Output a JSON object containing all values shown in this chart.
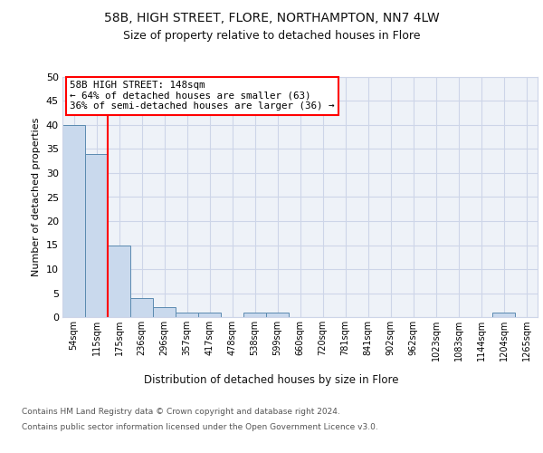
{
  "title1": "58B, HIGH STREET, FLORE, NORTHAMPTON, NN7 4LW",
  "title2": "Size of property relative to detached houses in Flore",
  "xlabel": "Distribution of detached houses by size in Flore",
  "ylabel": "Number of detached properties",
  "bin_labels": [
    "54sqm",
    "115sqm",
    "175sqm",
    "236sqm",
    "296sqm",
    "357sqm",
    "417sqm",
    "478sqm",
    "538sqm",
    "599sqm",
    "660sqm",
    "720sqm",
    "781sqm",
    "841sqm",
    "902sqm",
    "962sqm",
    "1023sqm",
    "1083sqm",
    "1144sqm",
    "1204sqm",
    "1265sqm"
  ],
  "bar_heights": [
    40,
    34,
    15,
    4,
    2,
    1,
    1,
    0,
    1,
    1,
    0,
    0,
    0,
    0,
    0,
    0,
    0,
    0,
    0,
    1,
    0
  ],
  "bar_color": "#c9d9ed",
  "bar_edge_color": "#5a8ab0",
  "annotation_title": "58B HIGH STREET: 148sqm",
  "annotation_line1": "← 64% of detached houses are smaller (63)",
  "annotation_line2": "36% of semi-detached houses are larger (36) →",
  "footnote1": "Contains HM Land Registry data © Crown copyright and database right 2024.",
  "footnote2": "Contains public sector information licensed under the Open Government Licence v3.0.",
  "ylim": [
    0,
    50
  ],
  "yticks": [
    0,
    5,
    10,
    15,
    20,
    25,
    30,
    35,
    40,
    45,
    50
  ],
  "bg_color": "#ffffff",
  "grid_color": "#cdd5e8",
  "ax_bg_color": "#eef2f8"
}
